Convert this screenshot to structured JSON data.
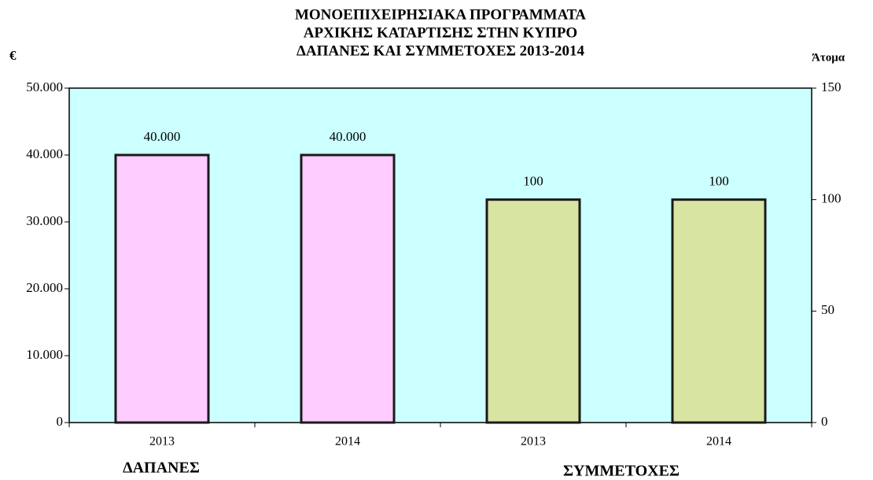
{
  "chart_data": {
    "type": "bar",
    "title": [
      "ΜΟΝΟΕΠΙΧΕΙΡΗΣΙΑΚΑ ΠΡΟΓΡΑΜΜΑΤΑ",
      "ΑΡΧΙΚΗΣ ΚΑΤΑΡΤΙΣΗΣ ΣΤΗΝ ΚΥΠΡΟ",
      "ΔΑΠΑΝΕΣ ΚΑΙ ΣΥΜΜΕΤΟΧΕΣ 2013-2014"
    ],
    "y_label": "€",
    "y2_label": "Άτομα",
    "categories": [
      "2013",
      "2014",
      "2013",
      "2014"
    ],
    "series": [
      {
        "name": "ΔΑΠΑΝΕΣ",
        "color": "#ffccff",
        "values": [
          40000,
          40000,
          null,
          null
        ],
        "value_labels": [
          "40.000",
          "40.000",
          null,
          null
        ]
      },
      {
        "name": "ΣΥΜΜΕΤΟΧΕΣ",
        "color": "#d7e4a2",
        "axis": "y2",
        "values": [
          null,
          null,
          100,
          100
        ]
      }
    ],
    "ylim": [
      0,
      50000
    ],
    "yticks": [
      0,
      {
        "value": 10000,
        "label": "10.000"
      },
      {
        "value": 20000,
        "label": "20.000"
      },
      {
        "value": 30000,
        "label": "30.000"
      },
      {
        "value": 40000,
        "label": "40.000"
      },
      {
        "value": 50000,
        "label": "50.000"
      }
    ],
    "y2lim": [
      0,
      150
    ],
    "y2ticks": [
      0,
      50,
      100,
      150
    ],
    "plot_background": "#ccffff"
  }
}
